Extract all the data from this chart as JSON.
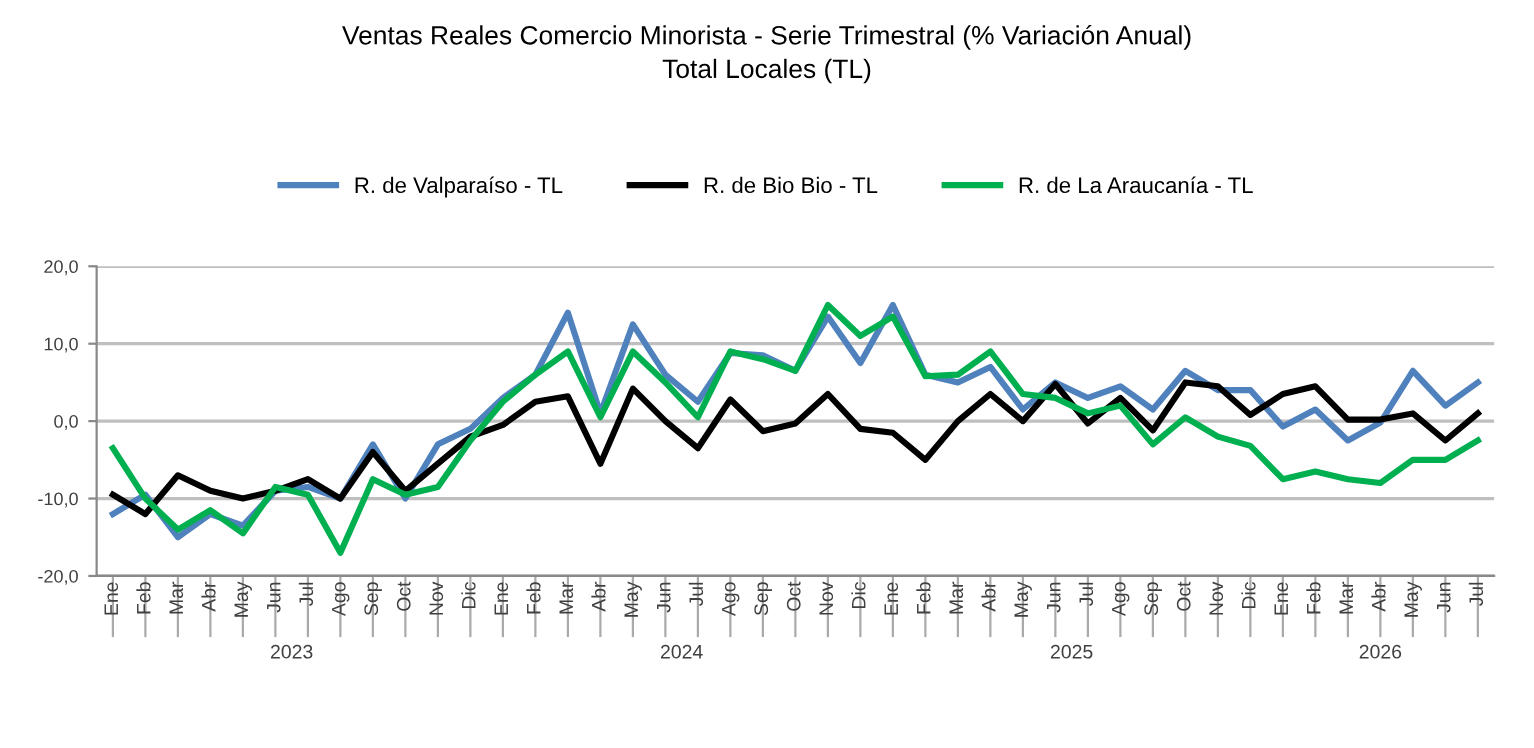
{
  "chart_data": {
    "type": "line",
    "title": "Ventas Reales Comercio Minorista - Serie Trimestral (% Variación Anual)",
    "subtitle": "Total Locales (TL)",
    "categories": [
      "Ene",
      "Feb",
      "Mar",
      "Abr",
      "May",
      "Jun",
      "Jul",
      "Ago",
      "Sep",
      "Oct",
      "Nov",
      "Dic",
      "Ene",
      "Feb",
      "Mar",
      "Abr",
      "May",
      "Jun",
      "Jul",
      "Ago",
      "Sep",
      "Oct",
      "Nov",
      "Dic",
      "Ene",
      "Feb",
      "Mar",
      "Abr",
      "May",
      "Jun",
      "Jul",
      "Ago",
      "Sep",
      "Oct",
      "Nov",
      "Dic",
      "Ene",
      "Feb",
      "Mar",
      "Abr",
      "May",
      "Jun",
      "Jul"
    ],
    "series": [
      {
        "name": "R. de Valparaíso - TL",
        "color": "#4f81bd",
        "values": [
          -12,
          -9.5,
          -15,
          -12,
          -13.5,
          -9,
          -8.5,
          -10,
          -3,
          -10,
          -3,
          -1,
          3,
          6,
          14,
          1,
          12.5,
          6,
          2.5,
          8.8,
          8.5,
          6.5,
          13.5,
          7.5,
          15,
          6,
          5,
          7,
          1.5,
          5,
          3,
          4.5,
          1.5,
          6.5,
          4,
          4,
          -0.7,
          1.5,
          -2.5,
          -0.2,
          6.5,
          2,
          5
        ]
      },
      {
        "name": "R. de Bio Bio - TL",
        "color": "#000000",
        "values": [
          -9.5,
          -12,
          -7,
          -9,
          -10,
          -9,
          -7.5,
          -10,
          -4,
          -9,
          -5.5,
          -2,
          -0.5,
          2.5,
          3.2,
          -5.5,
          4.2,
          0,
          -3.5,
          2.8,
          -1.3,
          -0.3,
          3.5,
          -1,
          -1.5,
          -5,
          0,
          3.5,
          0,
          4.8,
          -0.3,
          3,
          -1.2,
          5,
          4.5,
          0.8,
          3.5,
          4.5,
          0.2,
          0.2,
          1,
          -2.5,
          1
        ]
      },
      {
        "name": "R. de La Araucanía - TL",
        "color": "#00b050",
        "values": [
          -3.5,
          -10,
          -14,
          -11.5,
          -14.5,
          -8.5,
          -9.5,
          -17,
          -7.5,
          -9.5,
          -8.5,
          -2.5,
          2.5,
          6,
          9,
          0.5,
          9,
          5,
          0.5,
          9,
          8,
          6.5,
          15,
          11,
          13.5,
          5.8,
          6,
          9,
          3.5,
          3,
          1,
          2,
          -3,
          0.5,
          -2,
          -3.2,
          -7.5,
          -6.5,
          -7.5,
          -8,
          -5,
          -5,
          -2.5
        ]
      }
    ],
    "annotations": [
      "2023",
      "2024",
      "2025",
      "2026"
    ],
    "ylim": [
      -20,
      20
    ],
    "yticks": [
      {
        "value": -20,
        "label": "-20,0"
      },
      {
        "value": -10,
        "label": "-10,0"
      },
      {
        "value": 0,
        "label": "0,0"
      },
      {
        "value": 10,
        "label": "10,0"
      },
      {
        "value": 20,
        "label": "20,0"
      }
    ],
    "grid": "y",
    "legend": "top",
    "marker": "none",
    "line_style": "solid"
  }
}
